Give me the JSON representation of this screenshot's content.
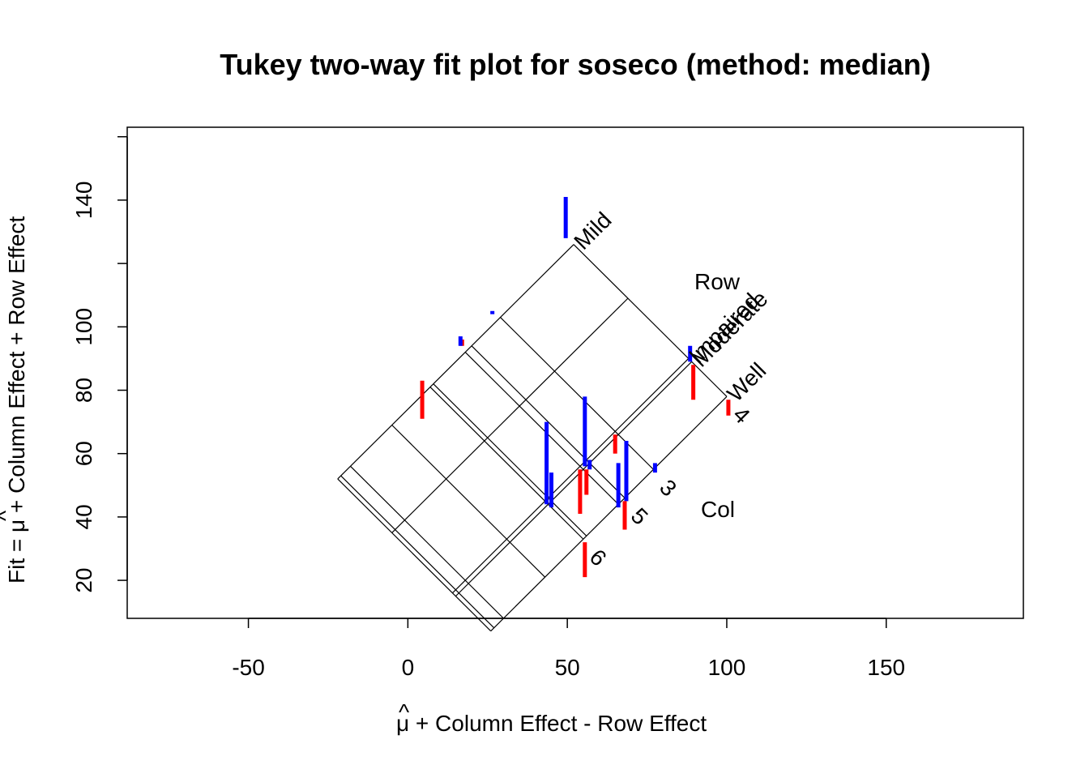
{
  "chart_data": {
    "type": "scatter",
    "title": "Tukey two-way fit plot for soseco (method: median)",
    "xlabel_mu": "μ",
    "xlabel_hat": "^",
    "xlabel_rest": " + Column Effect - Row Effect",
    "ylabel_prefix": "Fit = ",
    "ylabel_mu": "μ",
    "ylabel_hat": "^",
    "ylabel_rest": " + Column Effect + Row Effect",
    "xlim": [
      -88,
      193
    ],
    "ylim": [
      8,
      163
    ],
    "x_ticks": [
      -50,
      0,
      50,
      100,
      150
    ],
    "x_tick_labels": [
      "-50",
      "0",
      "50",
      "100",
      "150"
    ],
    "y_ticks": [
      20,
      40,
      60,
      80,
      100,
      120,
      140,
      160
    ],
    "y_tick_labels": [
      "20",
      "40",
      "60",
      "80",
      "100",
      "",
      "140",
      ""
    ],
    "mu": 55,
    "row_effects": [
      {
        "label": "Well",
        "value": -11
      },
      {
        "label": "Mild",
        "value": 37
      },
      {
        "label": "Moderate",
        "value": 0
      },
      {
        "label": "Impaired",
        "value": 1
      },
      {
        "label": "",
        "value": 20
      }
    ],
    "col_effects": [
      {
        "label": "",
        "value": -23
      },
      {
        "label": "",
        "value": -36
      },
      {
        "label": "",
        "value": -40
      },
      {
        "label": "",
        "value": -39
      },
      {
        "label": "",
        "value": -10
      },
      {
        "label": "3",
        "value": 11
      },
      {
        "label": "4",
        "value": 34
      },
      {
        "label": "5",
        "value": 2
      },
      {
        "label": "6",
        "value": -11
      },
      {
        "label": "",
        "value": 0
      }
    ],
    "group_labels": {
      "row": "Row",
      "col": "Col"
    },
    "residuals": [
      {
        "x": 4.5,
        "y_from": 83,
        "y_to": 71,
        "color": "#ff0000"
      },
      {
        "x": 17,
        "y_from": 94,
        "y_to": 96,
        "color": "#ff0000"
      },
      {
        "x": 16.5,
        "y_from": 94,
        "y_to": 97,
        "color": "#0000ff"
      },
      {
        "x": 26.5,
        "y_from": 104,
        "y_to": 105,
        "color": "#0000ff"
      },
      {
        "x": 49.5,
        "y_from": 128,
        "y_to": 141,
        "color": "#0000ff"
      },
      {
        "x": 43.5,
        "y_from": 44,
        "y_to": 70,
        "color": "#0000ff"
      },
      {
        "x": 45,
        "y_from": 43,
        "y_to": 54,
        "color": "#0000ff"
      },
      {
        "x": 55.5,
        "y_from": 56,
        "y_to": 78,
        "color": "#0000ff"
      },
      {
        "x": 57,
        "y_from": 55,
        "y_to": 58,
        "color": "#0000ff"
      },
      {
        "x": 54,
        "y_from": 55,
        "y_to": 41,
        "color": "#ff0000"
      },
      {
        "x": 56,
        "y_from": 55,
        "y_to": 47,
        "color": "#ff0000"
      },
      {
        "x": 55.5,
        "y_from": 32,
        "y_to": 21,
        "color": "#ff0000"
      },
      {
        "x": 65,
        "y_from": 66,
        "y_to": 60,
        "color": "#ff0000"
      },
      {
        "x": 66,
        "y_from": 43,
        "y_to": 57,
        "color": "#0000ff"
      },
      {
        "x": 68.5,
        "y_from": 45,
        "y_to": 64,
        "color": "#0000ff"
      },
      {
        "x": 68,
        "y_from": 45,
        "y_to": 36,
        "color": "#ff0000"
      },
      {
        "x": 77.5,
        "y_from": 54,
        "y_to": 57,
        "color": "#0000ff"
      },
      {
        "x": 88.5,
        "y_from": 89,
        "y_to": 94,
        "color": "#0000ff"
      },
      {
        "x": 89.5,
        "y_from": 88,
        "y_to": 77,
        "color": "#ff0000"
      },
      {
        "x": 100.5,
        "y_from": 77,
        "y_to": 72,
        "color": "#ff0000"
      }
    ]
  }
}
